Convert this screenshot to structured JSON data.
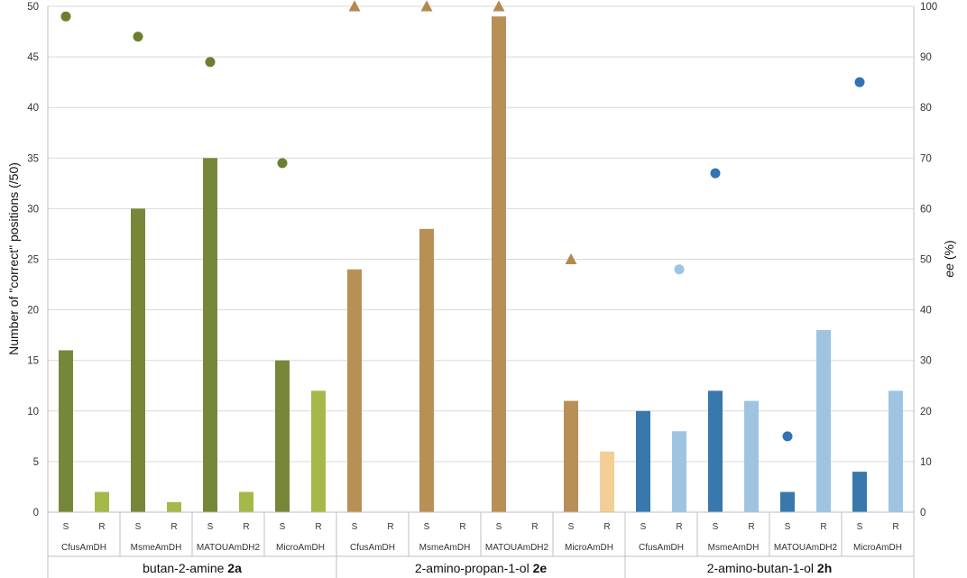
{
  "chart_data": {
    "type": "bar",
    "y_left_label": "Number of \"correct\" positions (/50)",
    "y_right_label_italic": "ee",
    "y_right_label_rest": " (%)",
    "y_left_range": [
      0,
      50
    ],
    "y_left_ticks": [
      0,
      5,
      10,
      15,
      20,
      25,
      30,
      35,
      40,
      45,
      50
    ],
    "y_right_range": [
      0,
      100
    ],
    "y_right_ticks": [
      0,
      10,
      20,
      30,
      40,
      50,
      60,
      70,
      80,
      90,
      100
    ],
    "substrates": [
      {
        "name": "butan-2-amine",
        "code": "2a",
        "colors": {
          "S": "#77873a",
          "R": "#a5b948",
          "marker": "#6b7f2f"
        },
        "marker_shape": "circle",
        "enzymes": [
          {
            "name": "CfusAmDH",
            "S": 16,
            "R": 2,
            "ee": 98,
            "ee_side": "S"
          },
          {
            "name": "MsmeAmDH",
            "S": 30,
            "R": 1,
            "ee": 94,
            "ee_side": "S"
          },
          {
            "name": "MATOUAmDH2",
            "S": 35,
            "R": 2,
            "ee": 89,
            "ee_side": "S"
          },
          {
            "name": "MicroAmDH",
            "S": 15,
            "R": 12,
            "ee": 69,
            "ee_side": "S"
          }
        ]
      },
      {
        "name": "2-amino-propan-1-ol",
        "code": "2e",
        "colors": {
          "S": "#b89056",
          "R": "#f3cf97",
          "marker": "#b08a52"
        },
        "marker_shape": "triangle",
        "enzymes": [
          {
            "name": "CfusAmDH",
            "S": 24,
            "R": 0,
            "ee": 100,
            "ee_side": "S"
          },
          {
            "name": "MsmeAmDH",
            "S": 28,
            "R": 0,
            "ee": 100,
            "ee_side": "S"
          },
          {
            "name": "MATOUAmDH2",
            "S": 49,
            "R": 0,
            "ee": 100,
            "ee_side": "S"
          },
          {
            "name": "MicroAmDH",
            "S": 11,
            "R": 6,
            "ee": 50,
            "ee_side": "S"
          }
        ]
      },
      {
        "name": "2-amino-butan-1-ol",
        "code": "2h",
        "colors": {
          "S": "#3878ad",
          "R": "#9ec4e2",
          "marker": "#3174b0",
          "marker_light": "#9ec4e2"
        },
        "marker_shape": "circle",
        "enzymes": [
          {
            "name": "CfusAmDH",
            "S": 10,
            "R": 8,
            "ee": 48,
            "ee_side": "R"
          },
          {
            "name": "MsmeAmDH",
            "S": 12,
            "R": 11,
            "ee": 67,
            "ee_side": "S"
          },
          {
            "name": "MATOUAmDH2",
            "S": 2,
            "R": 18,
            "ee": 15,
            "ee_side": "S"
          },
          {
            "name": "MicroAmDH",
            "S": 4,
            "R": 12,
            "ee": 85,
            "ee_side": "S"
          }
        ]
      }
    ],
    "bar_labels": {
      "S": "S",
      "R": "R"
    }
  }
}
